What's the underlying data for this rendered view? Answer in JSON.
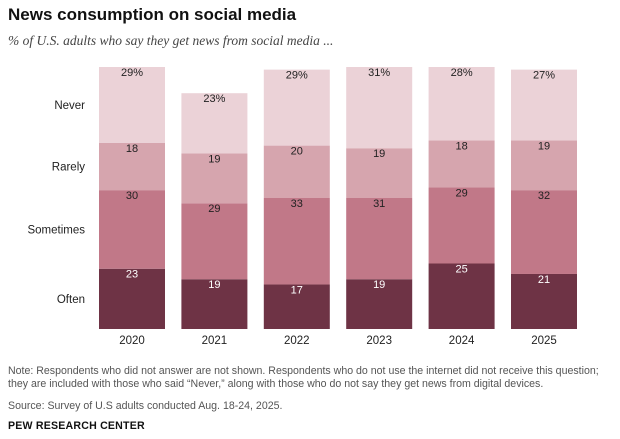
{
  "title": "News consumption on social media",
  "subtitle": "% of U.S. adults who say they get news from social media ...",
  "note": {
    "line1": "Note: Respondents who did not answer are not shown. Respondents who do not use the internet did not receive this question;",
    "line2": "they are included with those who said “Never,” along with those who do not say they get news from digital devices."
  },
  "source": "Source: Survey of U.S adults conducted Aug. 18-24, 2025.",
  "brand": "PEW RESEARCH CENTER",
  "chart_data": {
    "type": "bar",
    "stacked": true,
    "categories": [
      "2020",
      "2021",
      "2022",
      "2023",
      "2024",
      "2025"
    ],
    "series": [
      {
        "name": "Often",
        "values": [
          23,
          19,
          17,
          19,
          25,
          21
        ],
        "color": "#6e3345",
        "label_color": "#ffffff"
      },
      {
        "name": "Sometimes",
        "values": [
          30,
          29,
          33,
          31,
          29,
          32
        ],
        "color": "#c17888",
        "label_color": "#222222"
      },
      {
        "name": "Rarely",
        "values": [
          18,
          19,
          20,
          19,
          18,
          19
        ],
        "color": "#d6a5ae",
        "label_color": "#222222"
      },
      {
        "name": "Never",
        "values": [
          29,
          23,
          29,
          31,
          28,
          27
        ],
        "color": "#ebd2d7",
        "label_color": "#222222"
      }
    ],
    "value_labels": [
      [
        "23",
        "19",
        "17",
        "19",
        "25",
        "21"
      ],
      [
        "30",
        "29",
        "33",
        "31",
        "29",
        "32"
      ],
      [
        "18",
        "19",
        "20",
        "19",
        "18",
        "19"
      ],
      [
        "29%",
        "23%",
        "29%",
        "31%",
        "28%",
        "27%"
      ]
    ],
    "ylim": [
      0,
      100
    ],
    "legend": "left"
  }
}
